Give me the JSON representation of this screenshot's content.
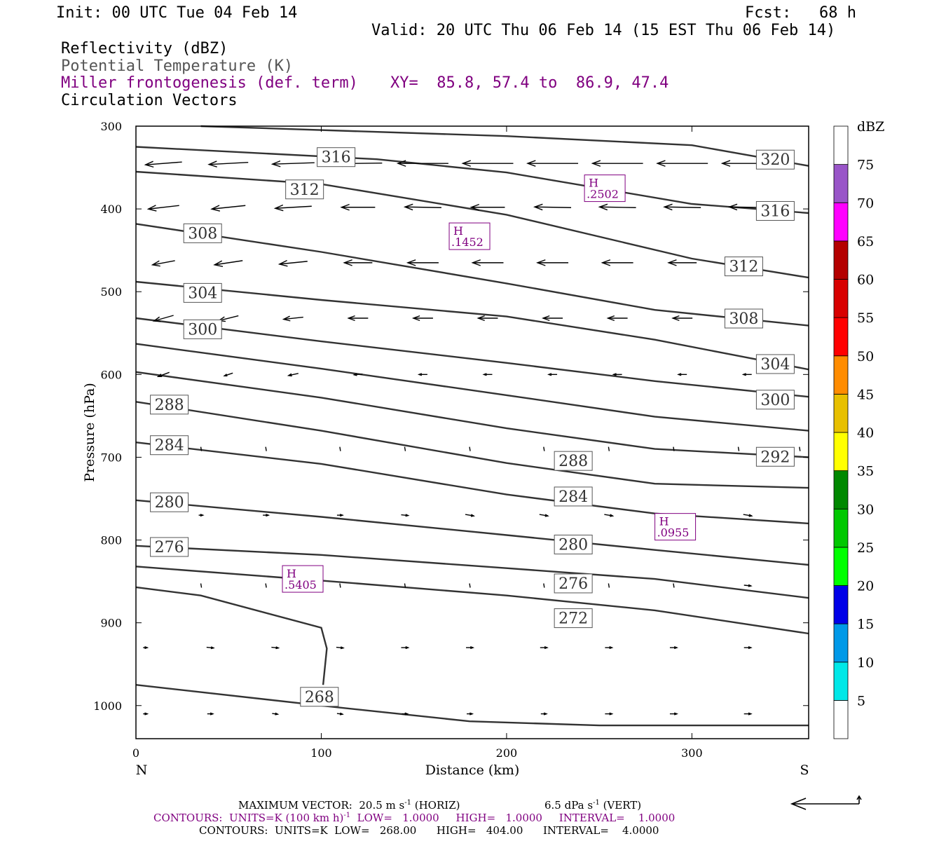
{
  "header": {
    "init": "Init: 00 UTC Tue 04 Feb 14",
    "fcst": "Fcst:   68 h",
    "valid": "Valid: 20 UTC Thu 06 Feb 14 (15 EST Thu 06 Feb 14)",
    "field1": "Reflectivity (dBZ)",
    "field2": "Potential Temperature (K)",
    "field3": "Miller frontogenesis (def. term)",
    "xy": "XY=  85.8, 57.4 to  86.9, 47.4",
    "field4": "Circulation Vectors"
  },
  "colors": {
    "contour": "#333333",
    "maxima": "#800080",
    "vector": "#000000"
  },
  "chart_data": {
    "type": "cross-section",
    "xlabel": "Distance (km)",
    "ylabel": "Pressure (hPa)",
    "xlim": [
      0,
      363
    ],
    "ylim": [
      1040,
      300
    ],
    "xticks": [
      "0",
      "100",
      "200",
      "300"
    ],
    "xtick_values": [
      0,
      100,
      200,
      300
    ],
    "yticks": [
      "300",
      "400",
      "500",
      "600",
      "700",
      "800",
      "900",
      "1000"
    ],
    "ytick_values": [
      300,
      400,
      500,
      600,
      700,
      800,
      900,
      1000
    ],
    "end_labels": {
      "left": "N",
      "right": "S"
    },
    "theta_contours": [
      {
        "value": 268,
        "points": [
          [
            0,
            975
          ],
          [
            100,
            1000
          ],
          [
            180,
            1019
          ],
          [
            250,
            1024
          ],
          [
            363,
            1024
          ]
        ]
      },
      {
        "value": 268,
        "points": [
          [
            0,
            857
          ],
          [
            35,
            867
          ],
          [
            100,
            906
          ],
          [
            103,
            931
          ],
          [
            101,
            975
          ]
        ]
      },
      {
        "value": 272,
        "points": [
          [
            0,
            832
          ],
          [
            100,
            849
          ],
          [
            200,
            867
          ],
          [
            280,
            885
          ],
          [
            363,
            913
          ]
        ]
      },
      {
        "value": 276,
        "points": [
          [
            0,
            807
          ],
          [
            100,
            818
          ],
          [
            200,
            834
          ],
          [
            280,
            847
          ],
          [
            363,
            870
          ]
        ]
      },
      {
        "value": 280,
        "points": [
          [
            0,
            752
          ],
          [
            100,
            772
          ],
          [
            200,
            794
          ],
          [
            280,
            812
          ],
          [
            363,
            830
          ]
        ]
      },
      {
        "value": 284,
        "points": [
          [
            0,
            682
          ],
          [
            100,
            708
          ],
          [
            200,
            745
          ],
          [
            280,
            768
          ],
          [
            363,
            780
          ]
        ]
      },
      {
        "value": 288,
        "points": [
          [
            0,
            633
          ],
          [
            100,
            668
          ],
          [
            200,
            707
          ],
          [
            280,
            732
          ],
          [
            363,
            737
          ]
        ]
      },
      {
        "value": 292,
        "points": [
          [
            0,
            597
          ],
          [
            100,
            628
          ],
          [
            200,
            665
          ],
          [
            280,
            690
          ],
          [
            363,
            700
          ]
        ]
      },
      {
        "value": 296,
        "points": [
          [
            0,
            563
          ],
          [
            100,
            593
          ],
          [
            200,
            625
          ],
          [
            280,
            651
          ],
          [
            363,
            668
          ]
        ]
      },
      {
        "value": 300,
        "points": [
          [
            0,
            532
          ],
          [
            100,
            560
          ],
          [
            200,
            586
          ],
          [
            280,
            608
          ],
          [
            363,
            627
          ]
        ]
      },
      {
        "value": 304,
        "points": [
          [
            0,
            488
          ],
          [
            100,
            510
          ],
          [
            200,
            530
          ],
          [
            280,
            558
          ],
          [
            363,
            594
          ]
        ]
      },
      {
        "value": 308,
        "points": [
          [
            0,
            418
          ],
          [
            100,
            452
          ],
          [
            200,
            490
          ],
          [
            280,
            522
          ],
          [
            363,
            541
          ]
        ]
      },
      {
        "value": 312,
        "points": [
          [
            0,
            355
          ],
          [
            100,
            370
          ],
          [
            200,
            407
          ],
          [
            300,
            460
          ],
          [
            363,
            483
          ]
        ]
      },
      {
        "value": 316,
        "points": [
          [
            0,
            325
          ],
          [
            130,
            340
          ],
          [
            200,
            356
          ],
          [
            300,
            394
          ],
          [
            363,
            405
          ]
        ]
      },
      {
        "value": 320,
        "points": [
          [
            35,
            300
          ],
          [
            200,
            312
          ],
          [
            300,
            323
          ],
          [
            363,
            348
          ]
        ]
      }
    ],
    "theta_labels": [
      {
        "value": "316",
        "x": 108,
        "p": 337
      },
      {
        "value": "312",
        "x": 91,
        "p": 376
      },
      {
        "value": "308",
        "x": 36,
        "p": 429
      },
      {
        "value": "304",
        "x": 36,
        "p": 501
      },
      {
        "value": "300",
        "x": 36,
        "p": 545
      },
      {
        "value": "288",
        "x": 18,
        "p": 636
      },
      {
        "value": "284",
        "x": 18,
        "p": 685
      },
      {
        "value": "280",
        "x": 18,
        "p": 754
      },
      {
        "value": "276",
        "x": 18,
        "p": 808
      },
      {
        "value": "268",
        "x": 99,
        "p": 989
      },
      {
        "value": "320",
        "x": 345,
        "p": 340
      },
      {
        "value": "316",
        "x": 345,
        "p": 402
      },
      {
        "value": "312",
        "x": 328,
        "p": 469
      },
      {
        "value": "308",
        "x": 328,
        "p": 532
      },
      {
        "value": "304",
        "x": 345,
        "p": 587
      },
      {
        "value": "300",
        "x": 345,
        "p": 630
      },
      {
        "value": "292",
        "x": 345,
        "p": 699
      },
      {
        "value": "288",
        "x": 236,
        "p": 704
      },
      {
        "value": "284",
        "x": 236,
        "p": 747
      },
      {
        "value": "280",
        "x": 236,
        "p": 805
      },
      {
        "value": "276",
        "x": 236,
        "p": 852
      },
      {
        "value": "272",
        "x": 236,
        "p": 894
      }
    ],
    "frontogenesis_maxima": [
      {
        "label": "H",
        "value": ".2502",
        "x": 253,
        "p": 375
      },
      {
        "label": "H",
        "value": ".1452",
        "x": 180,
        "p": 433
      },
      {
        "label": "H",
        "value": ".0955",
        "x": 291,
        "p": 784
      },
      {
        "label": "H",
        "value": ".5405",
        "x": 90,
        "p": 847
      }
    ],
    "vector_rows": [
      {
        "p": 345,
        "xs": [
          15,
          50,
          85,
          120,
          155,
          190,
          225,
          260,
          295,
          330
        ],
        "u": [
          -1,
          -1,
          -1,
          -1,
          -1,
          -1,
          -1,
          -1,
          -1,
          -1
        ],
        "len": [
          26,
          28,
          30,
          34,
          36,
          36,
          36,
          36,
          36,
          36
        ],
        "tilt": [
          4,
          3,
          2,
          1,
          0,
          0,
          0,
          0,
          0,
          0
        ]
      },
      {
        "p": 398,
        "xs": [
          15,
          50,
          85,
          120,
          155,
          190,
          225,
          260,
          295,
          330
        ],
        "u": [
          -1,
          -1,
          -1,
          -1,
          -1,
          -1,
          -1,
          -1,
          -1,
          -1
        ],
        "len": [
          22,
          24,
          26,
          24,
          26,
          24,
          26,
          26,
          26,
          26
        ],
        "tilt": [
          5,
          5,
          3,
          0,
          -1,
          0,
          -1,
          -1,
          -1,
          -1
        ]
      },
      {
        "p": 465,
        "xs": [
          15,
          50,
          85,
          120,
          155,
          190,
          225,
          260,
          295,
          330
        ],
        "u": [
          -1,
          -1,
          -1,
          -1,
          -1,
          -1,
          -1,
          -1,
          -1,
          -1
        ],
        "len": [
          16,
          20,
          20,
          20,
          22,
          22,
          22,
          22,
          20,
          20
        ],
        "tilt": [
          6,
          6,
          4,
          0,
          0,
          0,
          0,
          0,
          0,
          0
        ]
      },
      {
        "p": 532,
        "xs": [
          15,
          50,
          85,
          120,
          155,
          190,
          225,
          260,
          295,
          330
        ],
        "u": [
          -1,
          -1,
          -1,
          -1,
          -1,
          -1,
          -1,
          -1,
          -1,
          -1
        ],
        "len": [
          14,
          14,
          14,
          14,
          14,
          14,
          14,
          14,
          14,
          14
        ],
        "tilt": [
          8,
          7,
          3,
          0,
          0,
          0,
          0,
          0,
          0,
          0
        ]
      },
      {
        "p": 600,
        "xs": [
          15,
          50,
          85,
          120,
          155,
          190,
          225,
          260,
          295,
          330
        ],
        "u": [
          -1,
          -1,
          -1,
          -1,
          -1,
          -1,
          -1,
          -1,
          -1,
          -1
        ],
        "len": [
          8,
          6,
          7,
          6,
          6,
          6,
          6,
          6,
          6,
          6
        ],
        "tilt": [
          6,
          4,
          3,
          1,
          0,
          0,
          0,
          0,
          0,
          0
        ]
      },
      {
        "p": 690,
        "xs": [
          35,
          70,
          110,
          145,
          180,
          220,
          255,
          290,
          325,
          358
        ],
        "u": [
          0,
          0,
          0,
          0,
          0,
          0,
          0,
          0,
          0,
          0
        ],
        "len": [
          3,
          3,
          3,
          3,
          3,
          3,
          3,
          3,
          3,
          3
        ],
        "tilt": [
          3,
          3,
          3,
          2,
          2,
          1,
          1,
          1,
          1,
          1
        ]
      },
      {
        "p": 770,
        "xs": [
          35,
          70,
          110,
          145,
          180,
          220,
          255,
          290,
          330
        ],
        "u": [
          1,
          1,
          1,
          1,
          1,
          1,
          1,
          1,
          1
        ],
        "len": [
          6,
          8,
          8,
          10,
          12,
          12,
          12,
          12,
          12
        ],
        "tilt": [
          0,
          0,
          0,
          1,
          2,
          2,
          2,
          2,
          2
        ]
      },
      {
        "p": 855,
        "xs": [
          35,
          70,
          110,
          145,
          180,
          220,
          255,
          290,
          330
        ],
        "u": [
          0,
          0,
          0,
          0,
          0,
          0,
          0,
          0,
          1
        ],
        "len": [
          3,
          3,
          3,
          3,
          3,
          3,
          3,
          6,
          10
        ],
        "tilt": [
          1,
          2,
          2,
          1,
          1,
          2,
          2,
          1,
          1
        ]
      },
      {
        "p": 930,
        "xs": [
          5,
          40,
          75,
          110,
          145,
          180,
          220,
          255,
          290,
          330
        ],
        "u": [
          1,
          1,
          1,
          1,
          1,
          1,
          1,
          1,
          1,
          1
        ],
        "len": [
          6,
          10,
          10,
          10,
          10,
          10,
          10,
          10,
          10,
          10
        ],
        "tilt": [
          0,
          1,
          1,
          1,
          0,
          0,
          0,
          0,
          0,
          0
        ]
      },
      {
        "p": 1010,
        "xs": [
          5,
          40,
          75,
          110,
          145,
          180,
          220,
          255,
          290,
          330
        ],
        "u": [
          1,
          1,
          1,
          1,
          1,
          1,
          1,
          1,
          1,
          1
        ],
        "len": [
          6,
          8,
          8,
          8,
          8,
          8,
          8,
          10,
          10,
          10
        ],
        "tilt": [
          0,
          0,
          1,
          1,
          0,
          0,
          0,
          0,
          0,
          0
        ]
      }
    ],
    "colorbar": {
      "title": "dBZ",
      "levels": [
        "5",
        "10",
        "15",
        "20",
        "25",
        "30",
        "35",
        "40",
        "45",
        "50",
        "55",
        "60",
        "65",
        "70",
        "75"
      ],
      "colors": [
        "#ffffff",
        "#00e8e8",
        "#0099e8",
        "#0000e8",
        "#00ff00",
        "#00c800",
        "#008800",
        "#ffff00",
        "#e8c000",
        "#ff8c00",
        "#ff0000",
        "#d80000",
        "#b40000",
        "#ff00ff",
        "#9955c8",
        "#ffffff"
      ]
    }
  },
  "footer": {
    "max_vector": "MAXIMUM VECTOR:  20.5 m s",
    "max_vector_exp": "-1",
    "max_vector_mid": " (HORIZ)",
    "max_vector_vert": "6.5 dPa s",
    "max_vector_vert_exp": "-1",
    "max_vector_vert_end": " (VERT)",
    "contours1_a": "CONTOURS:  UNITS=K (100 km h)",
    "contours1_exp": "-1",
    "contours1_b": "  LOW=   1.0000     HIGH=   1.0000     INTERVAL=    1.0000",
    "contours2": "CONTOURS:  UNITS=K  LOW=   268.00      HIGH=   404.00      INTERVAL=    4.0000"
  }
}
